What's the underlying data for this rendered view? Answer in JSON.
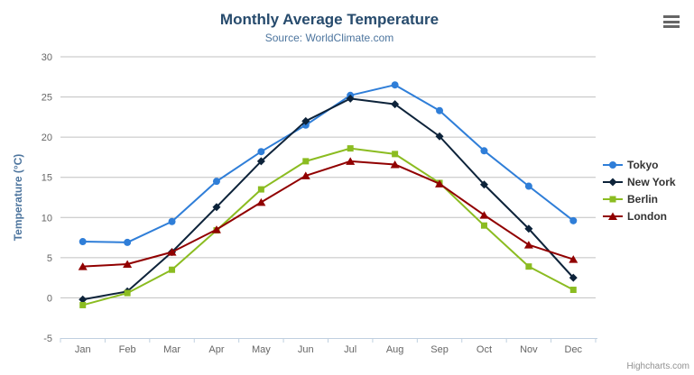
{
  "chart_data": {
    "type": "line",
    "title": "Monthly Average Temperature",
    "subtitle": "Source: WorldClimate.com",
    "xlabel": "",
    "ylabel": "Temperature (°C)",
    "categories": [
      "Jan",
      "Feb",
      "Mar",
      "Apr",
      "May",
      "Jun",
      "Jul",
      "Aug",
      "Sep",
      "Oct",
      "Nov",
      "Dec"
    ],
    "ylim": [
      -5,
      30
    ],
    "ytick_step": 5,
    "grid": "horizontal",
    "legend_position": "right",
    "series": [
      {
        "name": "Tokyo",
        "color": "#2f7ed8",
        "marker": "circle",
        "values": [
          7.0,
          6.9,
          9.5,
          14.5,
          18.2,
          21.5,
          25.2,
          26.5,
          23.3,
          18.3,
          13.9,
          9.6
        ]
      },
      {
        "name": "New York",
        "color": "#0d233a",
        "marker": "diamond",
        "values": [
          -0.2,
          0.8,
          5.7,
          11.3,
          17.0,
          22.0,
          24.8,
          24.1,
          20.1,
          14.1,
          8.6,
          2.5
        ]
      },
      {
        "name": "Berlin",
        "color": "#8bbc21",
        "marker": "square",
        "values": [
          -0.9,
          0.6,
          3.5,
          8.4,
          13.5,
          17.0,
          18.6,
          17.9,
          14.3,
          9.0,
          3.9,
          1.0
        ]
      },
      {
        "name": "London",
        "color": "#910000",
        "marker": "triangle",
        "values": [
          3.9,
          4.2,
          5.7,
          8.5,
          11.9,
          15.2,
          17.0,
          16.6,
          14.2,
          10.3,
          6.6,
          4.8
        ]
      }
    ],
    "credits": "Highcharts.com"
  },
  "icons": {
    "context_menu": "hamburger-menu"
  },
  "colors": {
    "title_text": "#274b6d",
    "subtitle_text": "#4d759e",
    "axis_title_text": "#4d759e",
    "axis_label_text": "#666666",
    "grid_line": "#c0c0c0",
    "axis_line": "#c0d0e0",
    "legend_text": "#333333",
    "credits_text": "#909090",
    "menu_icon": "#666666",
    "background": "#ffffff"
  }
}
